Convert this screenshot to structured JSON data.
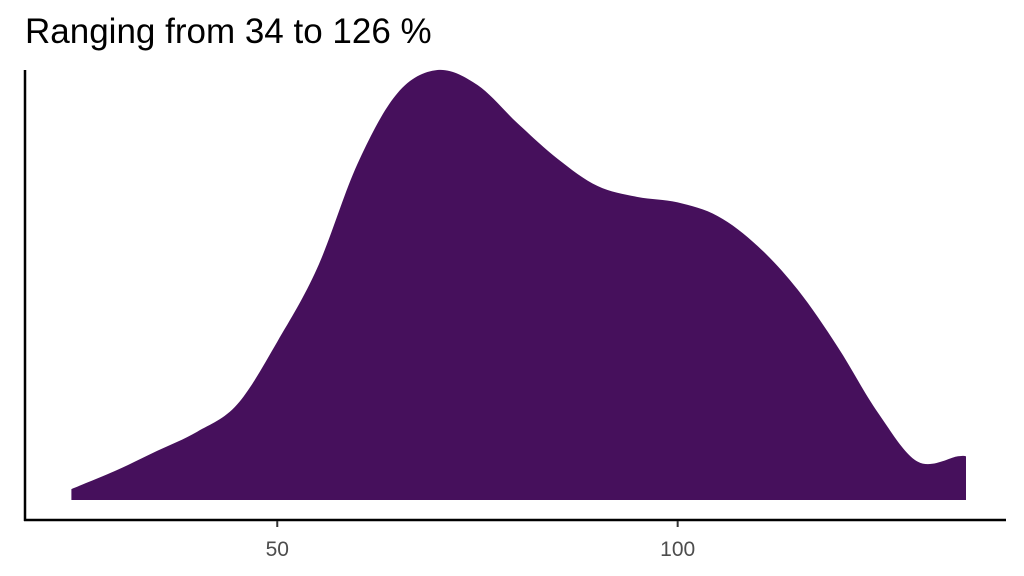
{
  "chart_data": {
    "type": "area",
    "title": "Ranging from 34 to 126 %",
    "xlabel": "",
    "ylabel": "",
    "xlim": [
      18.5,
      141
    ],
    "ylim": [
      0,
      0.01575
    ],
    "x_ticks": [
      50,
      100
    ],
    "x_tick_labels": [
      "50",
      "100"
    ],
    "y_ticks": [],
    "grid": false,
    "legend": "none",
    "fill_color": "#46105C",
    "axis_color": "#000000",
    "series": [
      {
        "x": [
          24.3,
          30,
          35,
          40,
          45,
          50,
          55,
          60,
          65,
          70,
          75,
          80,
          85,
          90,
          95,
          100,
          105,
          110,
          115,
          120,
          125,
          130,
          135,
          136
        ],
        "y": [
          0.0004,
          0.0011,
          0.0018,
          0.0025,
          0.0035,
          0.0058,
          0.0085,
          0.0123,
          0.0149,
          0.01575,
          0.0152,
          0.0138,
          0.0125,
          0.0115,
          0.0111,
          0.0109,
          0.0104,
          0.0093,
          0.0077,
          0.0056,
          0.0032,
          0.0014,
          0.0016,
          0.0016
        ]
      }
    ]
  }
}
